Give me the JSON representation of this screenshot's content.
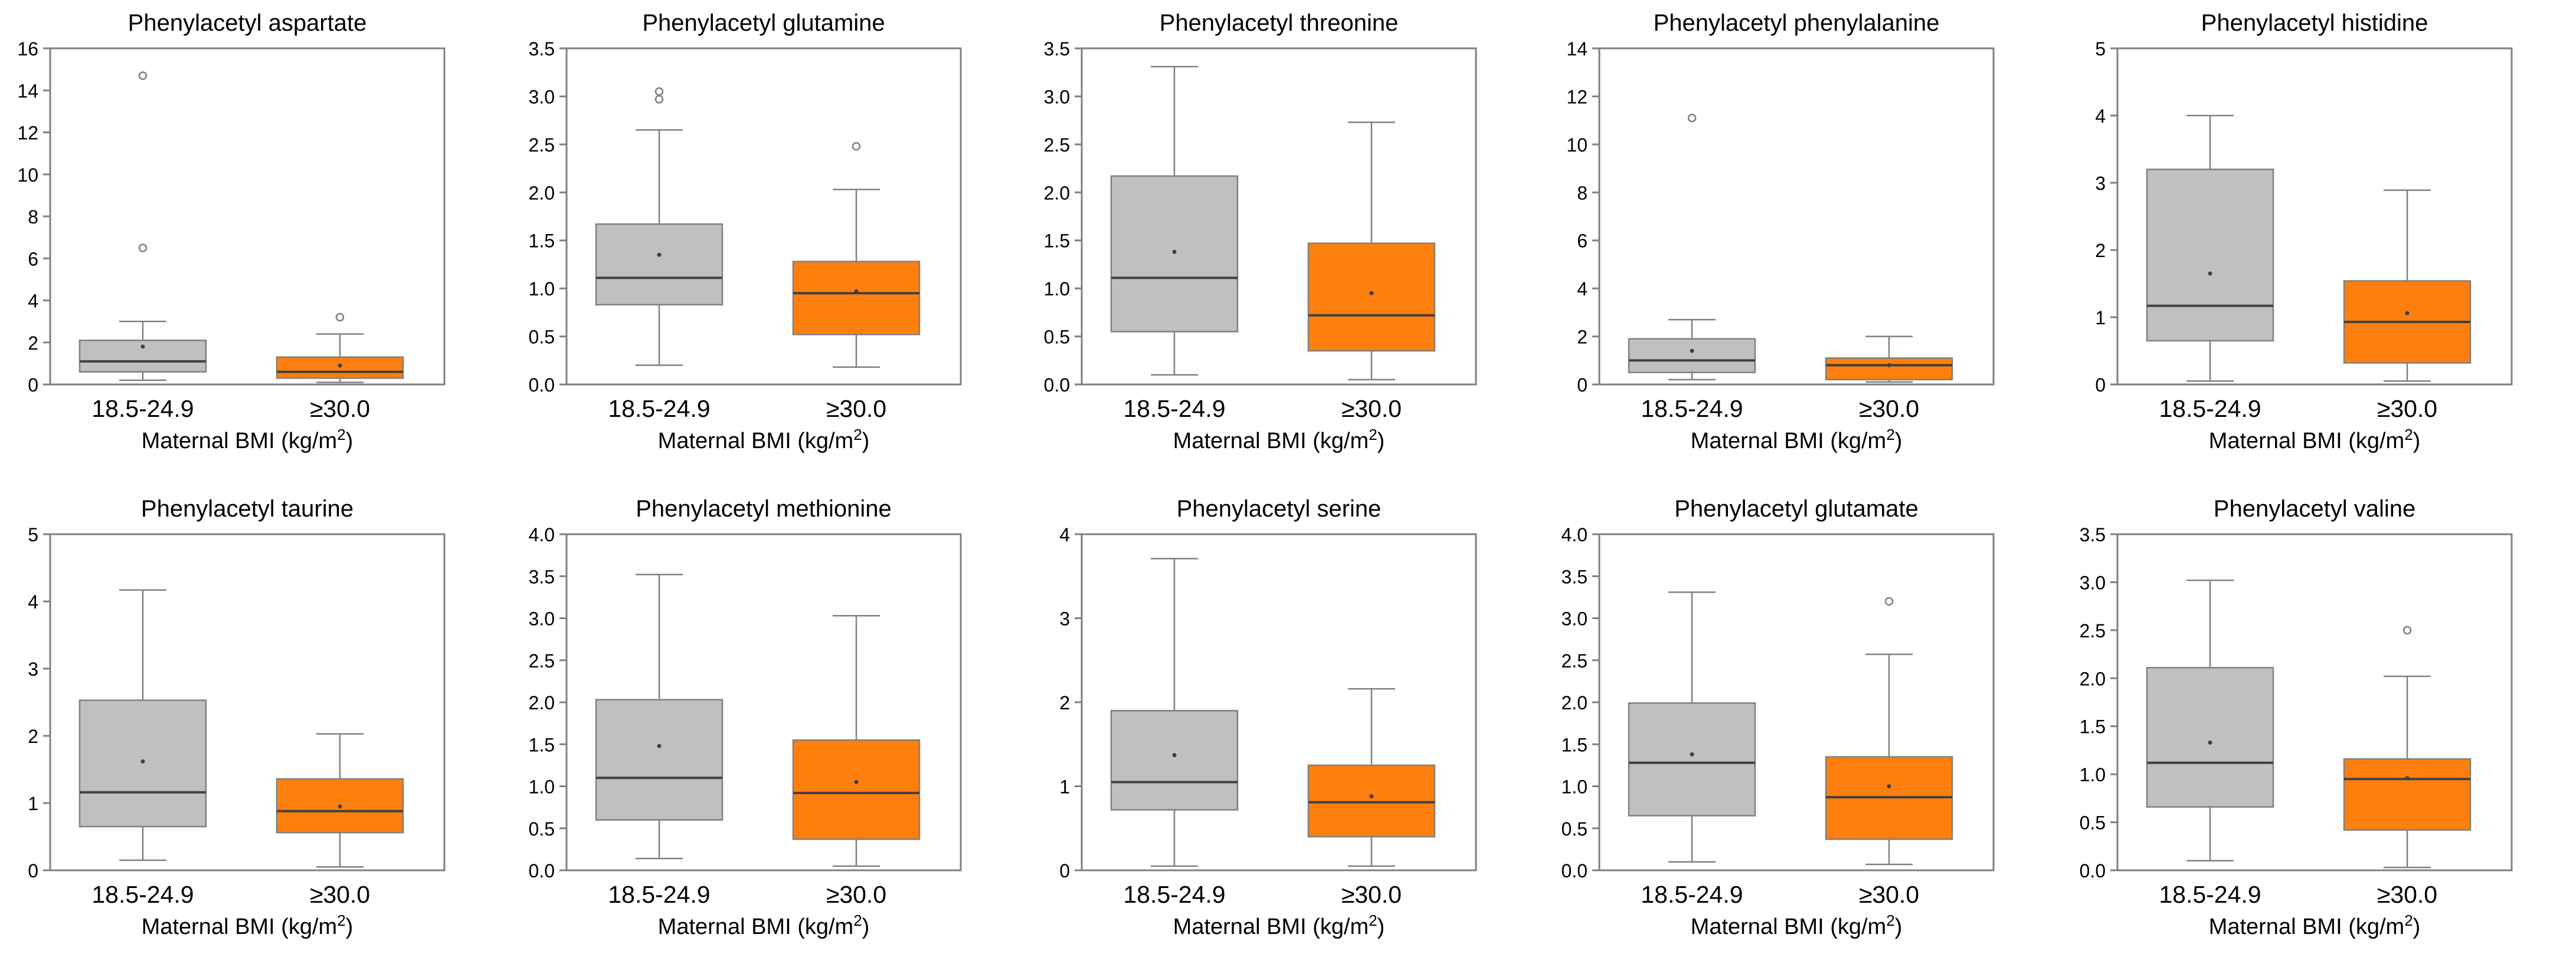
{
  "colors": {
    "group1": "#c0c0c0",
    "group2": "#ff7f0e",
    "box_stroke": "#808080",
    "frame": "#7f7f7f",
    "median": "#404040"
  },
  "chart_data": [
    {
      "type": "boxplot",
      "title": "Phenylacetyl aspartate",
      "xlabel": "Maternal BMI (kg/m²)",
      "ylim": [
        0,
        16
      ],
      "yticks": [
        0,
        2,
        4,
        6,
        8,
        10,
        12,
        14,
        16
      ],
      "categories": [
        "18.5-24.9",
        "≥30.0"
      ],
      "boxes": [
        {
          "min": 0.2,
          "q1": 0.6,
          "median": 1.1,
          "q3": 2.1,
          "max": 3.0,
          "mean": 1.8,
          "outliers": [
            6.5,
            14.7
          ]
        },
        {
          "min": 0.1,
          "q1": 0.3,
          "median": 0.6,
          "q3": 1.3,
          "max": 2.4,
          "mean": 0.9,
          "outliers": [
            3.2
          ]
        }
      ]
    },
    {
      "type": "boxplot",
      "title": "Phenylacetyl glutamine",
      "xlabel": "Maternal BMI (kg/m²)",
      "ylim": [
        0,
        3.5
      ],
      "yticks": [
        "0.0",
        "0.5",
        "1.0",
        "1.5",
        "2.0",
        "2.5",
        "3.0",
        "3.5"
      ],
      "categories": [
        "18.5-24.9",
        "≥30.0"
      ],
      "boxes": [
        {
          "min": 0.2,
          "q1": 0.83,
          "median": 1.11,
          "q3": 1.67,
          "max": 2.65,
          "mean": 1.35,
          "outliers": [
            2.97,
            3.05
          ]
        },
        {
          "min": 0.18,
          "q1": 0.52,
          "median": 0.95,
          "q3": 1.28,
          "max": 2.03,
          "mean": 0.97,
          "outliers": [
            2.48
          ]
        }
      ]
    },
    {
      "type": "boxplot",
      "title": "Phenylacetyl threonine",
      "xlabel": "Maternal BMI (kg/m²)",
      "ylim": [
        0,
        3.5
      ],
      "yticks": [
        "0.0",
        "0.5",
        "1.0",
        "1.5",
        "2.0",
        "2.5",
        "3.0",
        "3.5"
      ],
      "categories": [
        "18.5-24.9",
        "≥30.0"
      ],
      "boxes": [
        {
          "min": 0.1,
          "q1": 0.55,
          "median": 1.11,
          "q3": 2.17,
          "max": 3.31,
          "mean": 1.38,
          "outliers": []
        },
        {
          "min": 0.05,
          "q1": 0.35,
          "median": 0.72,
          "q3": 1.47,
          "max": 2.73,
          "mean": 0.95,
          "outliers": []
        }
      ]
    },
    {
      "type": "boxplot",
      "title": "Phenylacetyl phenylalanine",
      "xlabel": "Maternal BMI (kg/m²)",
      "ylim": [
        0,
        14
      ],
      "yticks": [
        0,
        2,
        4,
        6,
        8,
        10,
        12,
        14
      ],
      "categories": [
        "18.5-24.9",
        "≥30.0"
      ],
      "boxes": [
        {
          "min": 0.2,
          "q1": 0.5,
          "median": 1.0,
          "q3": 1.9,
          "max": 2.7,
          "mean": 1.4,
          "outliers": [
            11.1
          ]
        },
        {
          "min": 0.1,
          "q1": 0.2,
          "median": 0.8,
          "q3": 1.1,
          "max": 2.0,
          "mean": 0.8,
          "outliers": []
        }
      ]
    },
    {
      "type": "boxplot",
      "title": "Phenylacetyl histidine",
      "xlabel": "Maternal BMI (kg/m²)",
      "ylim": [
        0,
        5
      ],
      "yticks": [
        0,
        1,
        2,
        3,
        4,
        5
      ],
      "categories": [
        "18.5-24.9",
        "≥30.0"
      ],
      "boxes": [
        {
          "min": 0.05,
          "q1": 0.65,
          "median": 1.17,
          "q3": 3.2,
          "max": 4.0,
          "mean": 1.65,
          "outliers": []
        },
        {
          "min": 0.05,
          "q1": 0.32,
          "median": 0.93,
          "q3": 1.54,
          "max": 2.89,
          "mean": 1.06,
          "outliers": []
        }
      ]
    },
    {
      "type": "boxplot",
      "title": "Phenylacetyl taurine",
      "xlabel": "Maternal BMI (kg/m²)",
      "ylim": [
        0,
        5
      ],
      "yticks": [
        0,
        1,
        2,
        3,
        4,
        5
      ],
      "categories": [
        "18.5-24.9",
        "≥30.0"
      ],
      "boxes": [
        {
          "min": 0.15,
          "q1": 0.65,
          "median": 1.16,
          "q3": 2.53,
          "max": 4.17,
          "mean": 1.62,
          "outliers": []
        },
        {
          "min": 0.05,
          "q1": 0.56,
          "median": 0.88,
          "q3": 1.36,
          "max": 2.03,
          "mean": 0.95,
          "outliers": []
        }
      ]
    },
    {
      "type": "boxplot",
      "title": "Phenylacetyl methionine",
      "xlabel": "Maternal BMI (kg/m²)",
      "ylim": [
        0,
        4
      ],
      "yticks": [
        "0.0",
        "0.5",
        "1.0",
        "1.5",
        "2.0",
        "2.5",
        "3.0",
        "3.5",
        "4.0"
      ],
      "categories": [
        "18.5-24.9",
        "≥30.0"
      ],
      "boxes": [
        {
          "min": 0.14,
          "q1": 0.6,
          "median": 1.1,
          "q3": 2.03,
          "max": 3.52,
          "mean": 1.48,
          "outliers": []
        },
        {
          "min": 0.05,
          "q1": 0.37,
          "median": 0.92,
          "q3": 1.55,
          "max": 3.03,
          "mean": 1.05,
          "outliers": []
        }
      ]
    },
    {
      "type": "boxplot",
      "title": "Phenylacetyl serine",
      "xlabel": "Maternal BMI (kg/m²)",
      "ylim": [
        0,
        4
      ],
      "yticks": [
        0,
        1,
        2,
        3,
        4
      ],
      "categories": [
        "18.5-24.9",
        "≥30.0"
      ],
      "boxes": [
        {
          "min": 0.05,
          "q1": 0.72,
          "median": 1.05,
          "q3": 1.9,
          "max": 3.71,
          "mean": 1.37,
          "outliers": []
        },
        {
          "min": 0.05,
          "q1": 0.4,
          "median": 0.81,
          "q3": 1.25,
          "max": 2.16,
          "mean": 0.88,
          "outliers": []
        }
      ]
    },
    {
      "type": "boxplot",
      "title": "Phenylacetyl glutamate",
      "xlabel": "Maternal BMI (kg/m²)",
      "ylim": [
        0,
        4
      ],
      "yticks": [
        "0.0",
        "0.5",
        "1.0",
        "1.5",
        "2.0",
        "2.5",
        "3.0",
        "3.5",
        "4.0"
      ],
      "categories": [
        "18.5-24.9",
        "≥30.0"
      ],
      "boxes": [
        {
          "min": 0.1,
          "q1": 0.65,
          "median": 1.28,
          "q3": 1.99,
          "max": 3.31,
          "mean": 1.38,
          "outliers": []
        },
        {
          "min": 0.07,
          "q1": 0.37,
          "median": 0.87,
          "q3": 1.35,
          "max": 2.57,
          "mean": 1.0,
          "outliers": [
            3.2
          ]
        }
      ]
    },
    {
      "type": "boxplot",
      "title": "Phenylacetyl valine",
      "xlabel": "Maternal BMI (kg/m²)",
      "ylim": [
        0,
        3.5
      ],
      "yticks": [
        "0.0",
        "0.5",
        "1.0",
        "1.5",
        "2.0",
        "2.5",
        "3.0",
        "3.5"
      ],
      "categories": [
        "18.5-24.9",
        "≥30.0"
      ],
      "boxes": [
        {
          "min": 0.1,
          "q1": 0.66,
          "median": 1.12,
          "q3": 2.11,
          "max": 3.02,
          "mean": 1.33,
          "outliers": []
        },
        {
          "min": 0.03,
          "q1": 0.42,
          "median": 0.95,
          "q3": 1.16,
          "max": 2.02,
          "mean": 0.96,
          "outliers": [
            2.5
          ]
        }
      ]
    }
  ]
}
